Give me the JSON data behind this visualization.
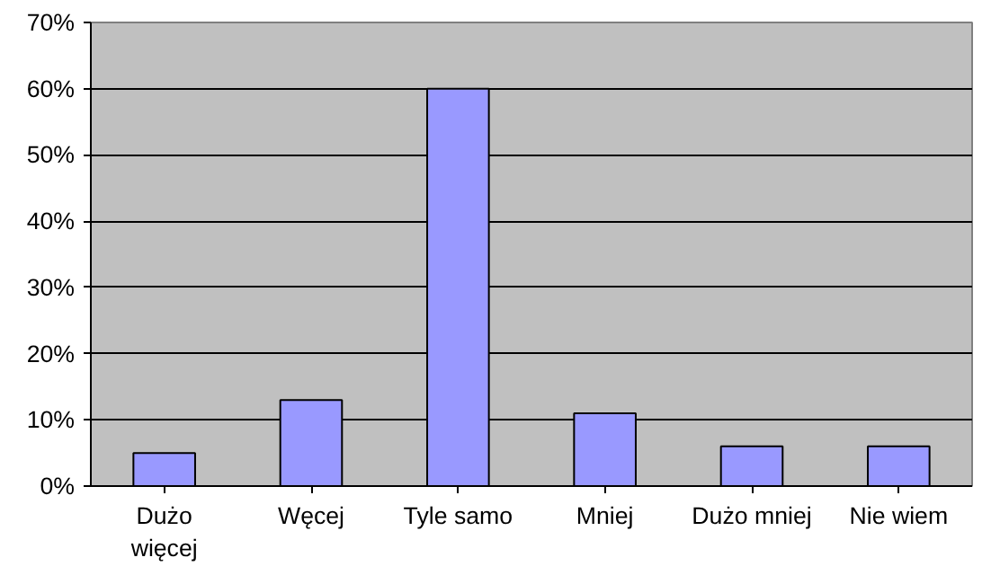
{
  "chart_data": {
    "type": "bar",
    "categories": [
      "Dużo więcej",
      "Węcej",
      "Tyle samo",
      "Mniej",
      "Dużo mniej",
      "Nie wiem"
    ],
    "values": [
      5,
      13,
      60,
      11,
      6,
      6
    ],
    "color": "#9999ff",
    "ylim": [
      0,
      70
    ],
    "yticks": [
      {
        "value": 0,
        "label": "0%"
      },
      {
        "value": 10,
        "label": "10%"
      },
      {
        "value": 20,
        "label": "20%"
      },
      {
        "value": 30,
        "label": "30%"
      },
      {
        "value": 40,
        "label": "40%"
      },
      {
        "value": 50,
        "label": "50%"
      },
      {
        "value": 60,
        "label": "60%"
      },
      {
        "value": 70,
        "label": "70%"
      }
    ],
    "grid": "y"
  }
}
